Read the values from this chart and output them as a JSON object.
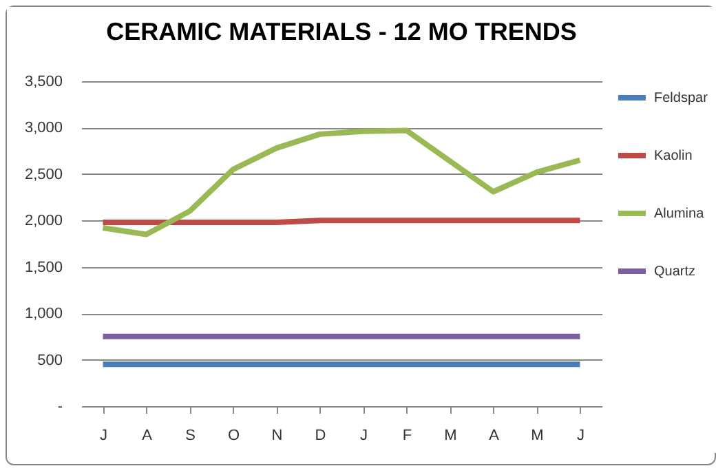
{
  "chart_data": {
    "type": "line",
    "title": "CERAMIC MATERIALS - 12 MO TRENDS",
    "categories": [
      "J",
      "A",
      "S",
      "O",
      "N",
      "D",
      "J",
      "F",
      "M",
      "A",
      "M",
      "J"
    ],
    "series": [
      {
        "name": "Feldspar",
        "color": "#4a7ebb",
        "values": [
          450,
          450,
          450,
          450,
          450,
          450,
          450,
          450,
          450,
          450,
          450,
          450
        ]
      },
      {
        "name": "Kaolin",
        "color": "#be4b48",
        "values": [
          1980,
          1980,
          1980,
          1980,
          1980,
          2000,
          2000,
          2000,
          2000,
          2000,
          2000,
          2000
        ]
      },
      {
        "name": "Alumina",
        "color": "#98b954",
        "values": [
          1920,
          1850,
          2100,
          2550,
          2780,
          2930,
          2960,
          2970,
          2640,
          2310,
          2520,
          2650
        ]
      },
      {
        "name": "Quartz",
        "color": "#7d60a0",
        "values": [
          750,
          750,
          750,
          750,
          750,
          750,
          750,
          750,
          750,
          750,
          750,
          750
        ]
      }
    ],
    "ylim": [
      0,
      3500
    ],
    "yticks": [
      {
        "value": 0,
        "label": "-"
      },
      500,
      {
        "value": 1000,
        "label": "1,000"
      },
      {
        "value": 1500,
        "label": "1,500"
      },
      {
        "value": 2000,
        "label": "2,000"
      },
      {
        "value": 2500,
        "label": "2,500"
      },
      {
        "value": 3000,
        "label": "3,000"
      },
      {
        "value": 3500,
        "label": "3,500"
      }
    ],
    "grid": "y",
    "legend": "right",
    "marker": "none",
    "line_style": "solid"
  }
}
